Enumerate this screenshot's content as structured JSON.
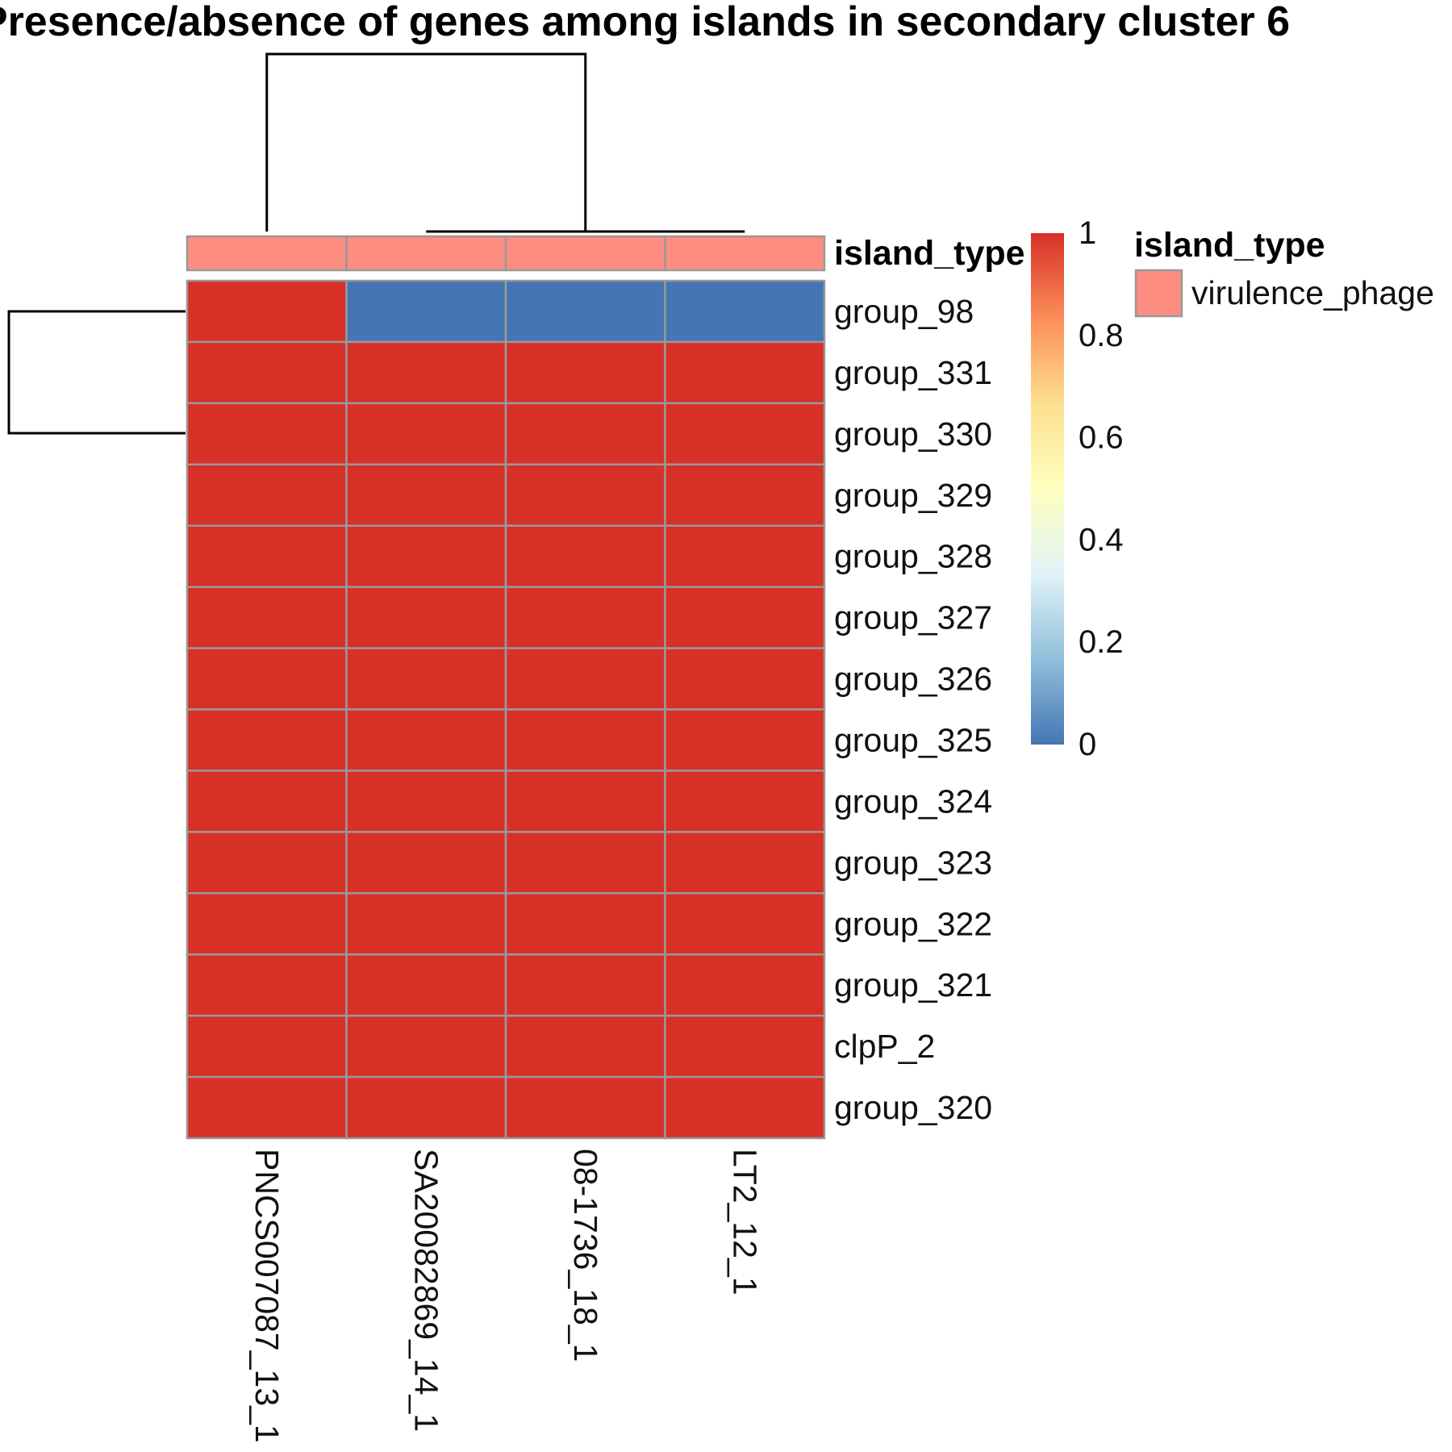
{
  "chart_data": {
    "type": "heatmap",
    "title": "Presence/absence of genes among islands in secondary cluster 6",
    "columns": [
      "PNCS007087_13_1",
      "SA20082869_14_1",
      "08-1736_18_1",
      "LT2_12_1"
    ],
    "rows": [
      "group_98",
      "group_331",
      "group_330",
      "group_329",
      "group_328",
      "group_327",
      "group_326",
      "group_325",
      "group_324",
      "group_323",
      "group_322",
      "group_321",
      "clpP_2",
      "group_320"
    ],
    "values": [
      [
        1,
        0,
        0,
        0
      ],
      [
        1,
        1,
        1,
        1
      ],
      [
        1,
        1,
        1,
        1
      ],
      [
        1,
        1,
        1,
        1
      ],
      [
        1,
        1,
        1,
        1
      ],
      [
        1,
        1,
        1,
        1
      ],
      [
        1,
        1,
        1,
        1
      ],
      [
        1,
        1,
        1,
        1
      ],
      [
        1,
        1,
        1,
        1
      ],
      [
        1,
        1,
        1,
        1
      ],
      [
        1,
        1,
        1,
        1
      ],
      [
        1,
        1,
        1,
        1
      ],
      [
        1,
        1,
        1,
        1
      ],
      [
        1,
        1,
        1,
        1
      ]
    ],
    "column_annotation": {
      "name": "island_type",
      "values": [
        "virulence_phage",
        "virulence_phage",
        "virulence_phage",
        "virulence_phage"
      ]
    },
    "annotation_legend": {
      "title": "island_type",
      "items": [
        {
          "label": "virulence_phage",
          "color": "#FC8D80"
        }
      ]
    },
    "color_scale": {
      "min": 0,
      "max": 1,
      "ticks": [
        "1",
        "0.8",
        "0.6",
        "0.4",
        "0.2",
        "0"
      ],
      "stops": [
        "#4575B4",
        "#91BFDB",
        "#E0F3F8",
        "#FFFFBF",
        "#FEE090",
        "#FC8D59",
        "#D73027"
      ]
    },
    "cell_border_color": "#999999",
    "dendrograms": {
      "rows": true,
      "columns": true
    }
  }
}
